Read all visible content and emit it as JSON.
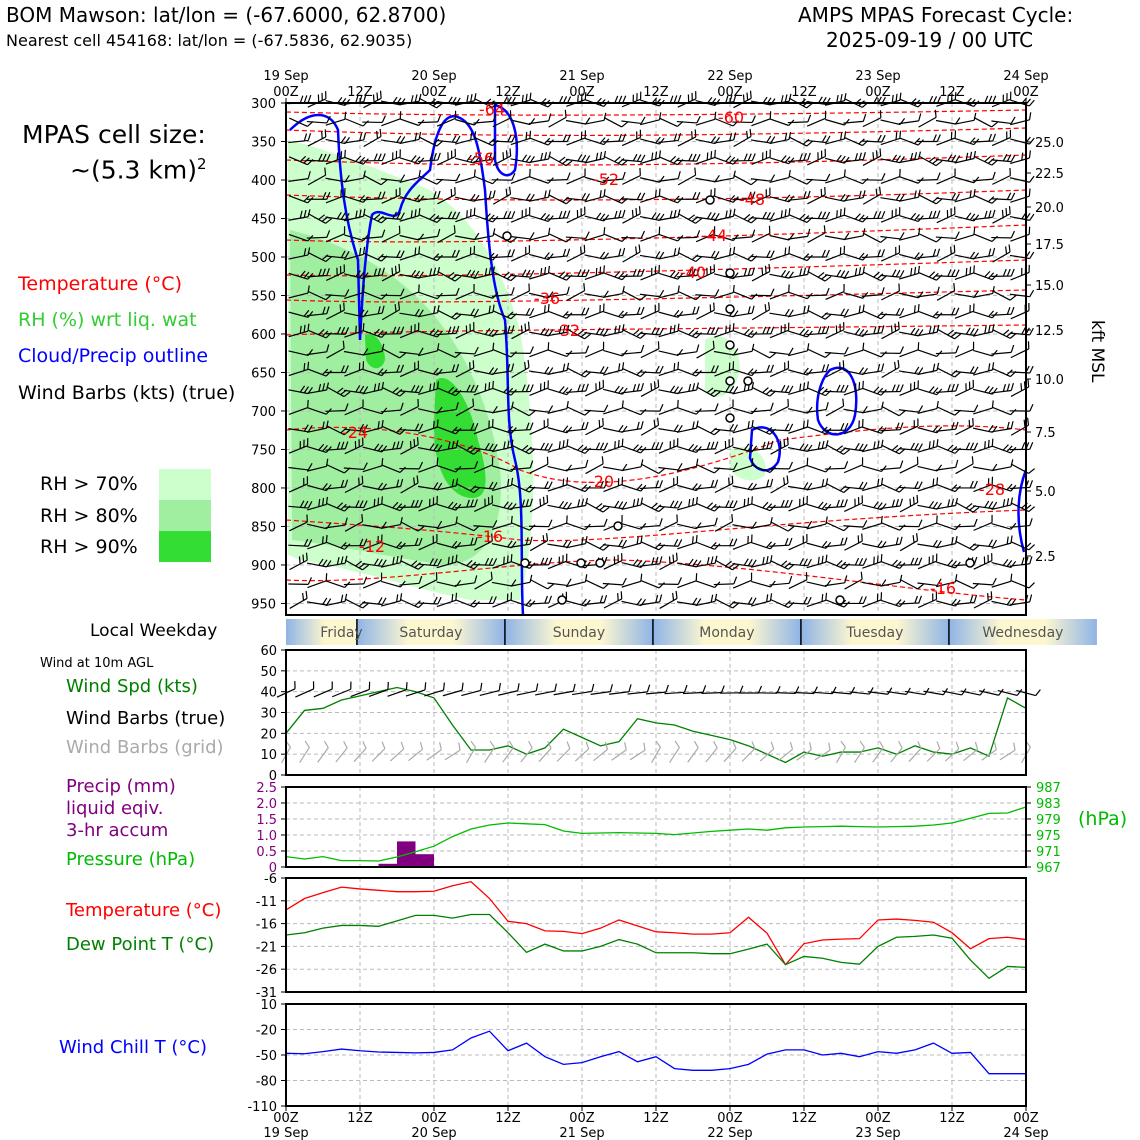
{
  "header": {
    "station": "BOM Mawson: lat/lon = (-67.6000, 62.8700)",
    "nearest_cell": "Nearest cell 454168: lat/lon = (-67.5836, 62.9035)",
    "cycle_title": "AMPS MPAS Forecast Cycle:",
    "cycle_time": "2025-09-19 / 00 UTC"
  },
  "cell_size": {
    "line1": "MPAS cell size:",
    "line2": "~(5.3 km)",
    "sup": "2"
  },
  "legend": {
    "temperature": "Temperature (°C)",
    "rh": "RH (%) wrt liq. wat",
    "cloud": "Cloud/Precip outline",
    "barbs": "Wind Barbs (kts) (true)",
    "rh70": "RH > 70%",
    "rh80": "RH > 80%",
    "rh90": "RH > 90%"
  },
  "colors": {
    "temperature": "#ff0000",
    "rh_label": "#33cc33",
    "cloud": "#0000ff",
    "rh70": "#ccffcc",
    "rh80": "#a0eea0",
    "rh90": "#33dd33",
    "windspd": "#008000",
    "precip": "#800080",
    "pressure": "#00bb00",
    "dewpoint": "#008000",
    "windchill": "#0000ff",
    "grid_barbs": "#aaaaaa"
  },
  "time_axis": {
    "top_ticks": [
      {
        "day": "19 Sep",
        "hour": "00Z"
      },
      {
        "day": "",
        "hour": "12Z"
      },
      {
        "day": "20 Sep",
        "hour": "00Z"
      },
      {
        "day": "",
        "hour": "12Z"
      },
      {
        "day": "21 Sep",
        "hour": "00Z"
      },
      {
        "day": "",
        "hour": "12Z"
      },
      {
        "day": "22 Sep",
        "hour": "00Z"
      },
      {
        "day": "",
        "hour": "12Z"
      },
      {
        "day": "23 Sep",
        "hour": "00Z"
      },
      {
        "day": "",
        "hour": "12Z"
      },
      {
        "day": "24 Sep",
        "hour": "00Z"
      }
    ],
    "weekday_label": "Local Weekday",
    "weekdays": [
      "Friday",
      "Saturday",
      "Sunday",
      "Monday",
      "Tuesday",
      "Wednesday"
    ]
  },
  "upper_panel": {
    "pressure_ticks": [
      "300",
      "350",
      "400",
      "450",
      "500",
      "550",
      "600",
      "650",
      "700",
      "750",
      "800",
      "850",
      "900",
      "950"
    ],
    "height_ticks": [
      "25.0",
      "22.5",
      "20.0",
      "17.5",
      "15.0",
      "12.5",
      "10.0",
      "7.5",
      "5.0",
      "2.5"
    ],
    "height_label": "kft MSL",
    "temp_labels": [
      "-64",
      "-60",
      "-56",
      "-52",
      "-48",
      "-44",
      "-40",
      "-36",
      "-32",
      "-24",
      "-20",
      "-16",
      "-12",
      "-28",
      "-16"
    ]
  },
  "panel_wind": {
    "title": "Wind at 10m AGL",
    "labels": [
      "Wind Spd (kts)",
      "Wind Barbs (true)",
      "Wind Barbs (grid)"
    ],
    "yticks": [
      "60",
      "50",
      "40",
      "30",
      "20",
      "10",
      "0"
    ]
  },
  "panel_precip": {
    "labels": [
      "Precip (mm)",
      "liquid eqiv.",
      "3-hr accum",
      "Pressure (hPa)"
    ],
    "left_ticks": [
      "2.5",
      "2.0",
      "1.5",
      "1.0",
      "0.5",
      "0"
    ],
    "right_ticks": [
      "987",
      "983",
      "979",
      "975",
      "971",
      "967"
    ],
    "right_unit": "(hPa)"
  },
  "panel_temp": {
    "labels": [
      "Temperature (°C)",
      "Dew Point T (°C)"
    ],
    "yticks": [
      "-6",
      "-11",
      "-16",
      "-21",
      "-26",
      "-31"
    ]
  },
  "panel_chill": {
    "labels": [
      "Wind Chill T (°C)"
    ],
    "yticks": [
      "10",
      "-20",
      "-50",
      "-80",
      "-110"
    ]
  },
  "chart_data": [
    {
      "type": "line",
      "title": "Wind Spd (kts)",
      "x_hours": [
        0,
        3,
        6,
        9,
        12,
        15,
        18,
        21,
        24,
        27,
        30,
        33,
        36,
        39,
        42,
        45,
        48,
        51,
        54,
        57,
        60,
        63,
        66,
        69,
        72,
        75,
        78,
        81,
        84,
        87,
        90,
        93,
        96,
        99,
        102,
        105,
        108,
        111,
        114,
        117,
        120
      ],
      "series": [
        {
          "name": "Wind Spd (kts)",
          "values": [
            20,
            31,
            32,
            36,
            38,
            40,
            42,
            40,
            37,
            24,
            12,
            12,
            14,
            10,
            13,
            22,
            18,
            14,
            16,
            27,
            25,
            24,
            21,
            19,
            17,
            14,
            10,
            6,
            11,
            9,
            11,
            11,
            13,
            10,
            14,
            11,
            10,
            13,
            9,
            37,
            32
          ]
        }
      ],
      "ylim": [
        0,
        60
      ]
    },
    {
      "type": "bar",
      "title": "Precip (mm) liquid eqiv. 3-hr accum",
      "x_hours": [
        15,
        18,
        21
      ],
      "values": [
        0.1,
        0.8,
        0.4
      ],
      "ylim": [
        0,
        2.5
      ]
    },
    {
      "type": "line",
      "title": "Pressure (hPa)",
      "x_hours": [
        0,
        3,
        6,
        9,
        12,
        15,
        18,
        21,
        24,
        27,
        30,
        33,
        36,
        39,
        42,
        45,
        48,
        51,
        54,
        57,
        60,
        63,
        66,
        69,
        72,
        75,
        78,
        81,
        84,
        87,
        90,
        93,
        96,
        99,
        102,
        105,
        108,
        111,
        114,
        117,
        120
      ],
      "series": [
        {
          "name": "Pressure (hPa)",
          "values": [
            969.6,
            969.0,
            969.6,
            968.6,
            968.6,
            968.5,
            969.5,
            970.8,
            972.2,
            974.6,
            976.5,
            977.5,
            978.0,
            977.8,
            977.6,
            976.0,
            975.4,
            975.5,
            975.6,
            975.5,
            975.4,
            975.1,
            975.5,
            975.9,
            976.2,
            976.5,
            976.2,
            976.8,
            977.0,
            977.1,
            977.2,
            977.1,
            977.0,
            977.1,
            977.2,
            977.5,
            978.0,
            979.2,
            980.4,
            980.5,
            982.0
          ]
        }
      ],
      "ylim": [
        967,
        987
      ]
    },
    {
      "type": "line",
      "title": "Temperature / Dew Point T (°C)",
      "x_hours": [
        0,
        3,
        6,
        9,
        12,
        15,
        18,
        21,
        24,
        27,
        30,
        33,
        36,
        39,
        42,
        45,
        48,
        51,
        54,
        57,
        60,
        63,
        66,
        69,
        72,
        75,
        78,
        81,
        84,
        87,
        90,
        93,
        96,
        99,
        102,
        105,
        108,
        111,
        114,
        117,
        120
      ],
      "series": [
        {
          "name": "Temperature (°C)",
          "values": [
            -13.0,
            -10.5,
            -9.2,
            -8.0,
            -8.4,
            -8.7,
            -9.0,
            -9.0,
            -8.9,
            -7.7,
            -6.8,
            -10.5,
            -15.5,
            -16.0,
            -17.6,
            -17.7,
            -18.2,
            -17.0,
            -15.2,
            -16.5,
            -17.8,
            -18.0,
            -18.3,
            -18.3,
            -18.0,
            -14.6,
            -18.1,
            -25.0,
            -20.4,
            -19.6,
            -19.4,
            -19.3,
            -15.2,
            -15.0,
            -15.3,
            -15.7,
            -18.0,
            -21.5,
            -19.3,
            -19.0,
            -19.5
          ]
        },
        {
          "name": "Dew Point T (°C)",
          "values": [
            -18.5,
            -18.0,
            -17.0,
            -16.4,
            -16.4,
            -16.6,
            -15.4,
            -14.2,
            -14.2,
            -14.8,
            -14.0,
            -14.0,
            -18.0,
            -22.3,
            -20.5,
            -22.0,
            -22.0,
            -21.0,
            -19.5,
            -20.5,
            -22.4,
            -22.4,
            -22.4,
            -22.6,
            -22.6,
            -21.6,
            -20.5,
            -25.0,
            -23.2,
            -23.6,
            -24.5,
            -24.9,
            -21.0,
            -19.0,
            -18.8,
            -18.5,
            -19.2,
            -24.0,
            -28.0,
            -25.4,
            -25.6
          ]
        }
      ],
      "ylim": [
        -31,
        -6
      ]
    },
    {
      "type": "line",
      "title": "Wind Chill T (°C)",
      "x_hours": [
        0,
        3,
        6,
        9,
        12,
        15,
        18,
        21,
        24,
        27,
        30,
        33,
        36,
        39,
        42,
        45,
        48,
        51,
        54,
        57,
        60,
        63,
        66,
        69,
        72,
        75,
        78,
        81,
        84,
        87,
        90,
        93,
        96,
        99,
        102,
        105,
        108,
        111,
        114,
        117,
        120
      ],
      "series": [
        {
          "name": "Wind Chill T (°C)",
          "values": [
            -48,
            -48.5,
            -46,
            -43,
            -45,
            -46.5,
            -47,
            -47.5,
            -47,
            -44,
            -30,
            -22,
            -45,
            -36,
            -52,
            -61,
            -59,
            -52,
            -46,
            -58,
            -52,
            -66,
            -68,
            -68,
            -66,
            -61,
            -49,
            -44,
            -44,
            -50,
            -48,
            -52,
            -46,
            -48,
            -44,
            -36,
            -48,
            -47,
            -72,
            -72,
            -72
          ]
        }
      ],
      "ylim": [
        -110,
        10
      ]
    }
  ]
}
